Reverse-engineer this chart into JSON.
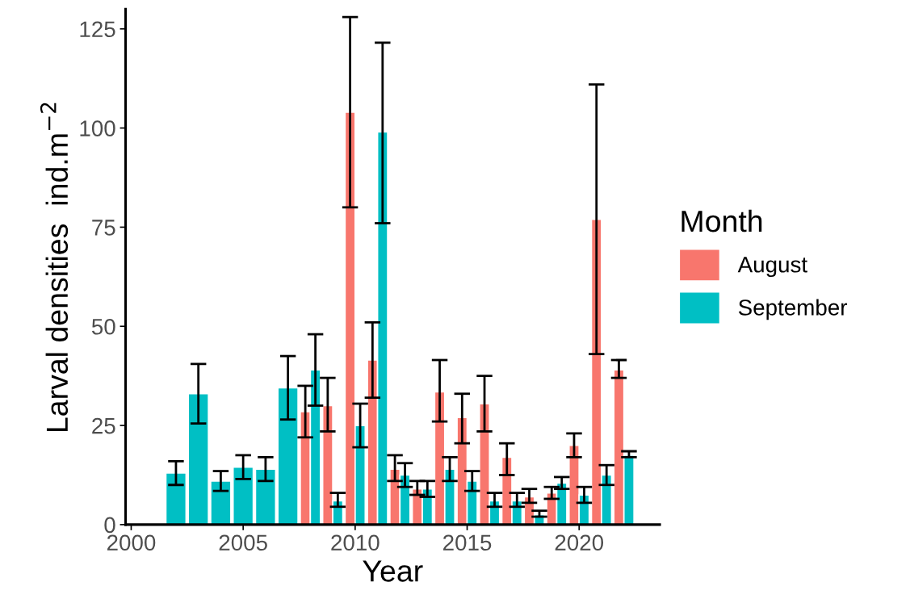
{
  "chart_data": {
    "type": "bar",
    "xlabel": "Year",
    "ylabel": "Larval densities  ind.m$^{−2}$",
    "legend_title": "Month",
    "legend": "right",
    "grid": false,
    "x": [
      2002,
      2003,
      2004,
      2005,
      2006,
      2007,
      2008,
      2009,
      2010,
      2011,
      2012,
      2013,
      2014,
      2015,
      2016,
      2017,
      2018,
      2019,
      2020,
      2021,
      2022
    ],
    "xlim": [
      1999.75,
      2023.6
    ],
    "xticks": [
      2000,
      2005,
      2010,
      2015,
      2020
    ],
    "ylim": [
      0,
      130
    ],
    "yticks": [
      0,
      25,
      50,
      75,
      100,
      125
    ],
    "series": [
      {
        "name": "August",
        "color": "#f8766d",
        "values": [
          null,
          null,
          null,
          null,
          null,
          null,
          28.5,
          30,
          104,
          41.5,
          14,
          9,
          33.5,
          27,
          30.5,
          17,
          7,
          8,
          20,
          77,
          39
        ],
        "errors": [
          null,
          null,
          null,
          null,
          null,
          null,
          [
            22,
            35
          ],
          [
            23.5,
            37
          ],
          [
            80,
            128
          ],
          [
            32,
            51
          ],
          [
            11,
            17.5
          ],
          [
            7.5,
            11
          ],
          [
            26,
            41.5
          ],
          [
            20.5,
            33
          ],
          [
            23.5,
            37.5
          ],
          [
            12.5,
            20.5
          ],
          [
            5.5,
            9
          ],
          [
            6.5,
            9.5
          ],
          [
            17,
            23
          ],
          [
            43,
            111
          ],
          [
            37,
            41.5
          ]
        ]
      },
      {
        "name": "September",
        "color": "#00bfc4",
        "values": [
          13,
          33,
          11,
          14.5,
          14,
          34.5,
          39,
          6,
          25,
          99,
          12.5,
          9,
          14,
          11,
          6,
          6,
          2.5,
          10.5,
          7.5,
          12.5,
          17.5
        ],
        "errors": [
          [
            10,
            16
          ],
          [
            25.5,
            40.5
          ],
          [
            8.5,
            13.5
          ],
          [
            11.5,
            17.5
          ],
          [
            11,
            17
          ],
          [
            26.5,
            42.5
          ],
          [
            30,
            48
          ],
          [
            4.5,
            8
          ],
          [
            19.5,
            30.5
          ],
          [
            76,
            121.5
          ],
          [
            9.5,
            15.5
          ],
          [
            7,
            11
          ],
          [
            11,
            17
          ],
          [
            8.5,
            13.5
          ],
          [
            4.5,
            8
          ],
          [
            4.5,
            8
          ],
          [
            2,
            3.5
          ],
          [
            9,
            12
          ],
          [
            5.5,
            9.5
          ],
          [
            10,
            15
          ],
          [
            17,
            18.5
          ]
        ]
      }
    ]
  }
}
